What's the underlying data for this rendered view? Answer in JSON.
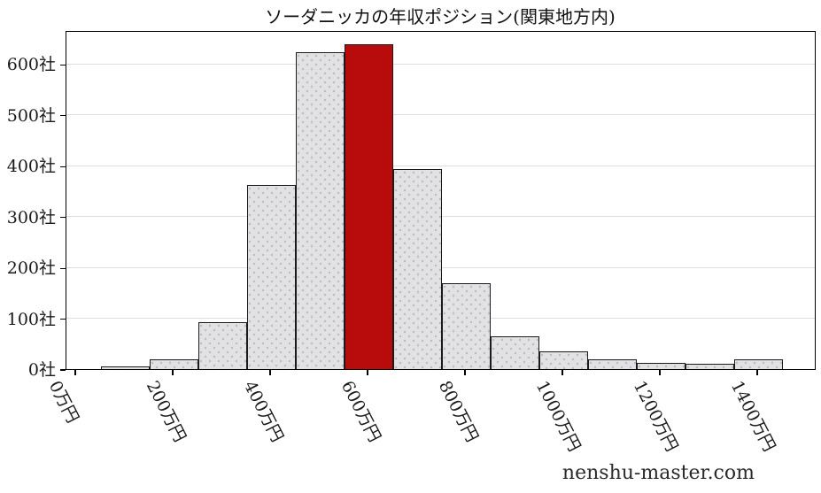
{
  "page": {
    "watermark": "nenshu-master.com"
  },
  "colors": {
    "background": "#ffffff",
    "bar_fill": "#e2e2e4",
    "bar_dot": "#c6c6ce",
    "bar_edge": "#1a1a1a",
    "highlight_fill": "#b80c0c",
    "gridline": "#dedede",
    "spine": "#000000",
    "text": "#1a1a1a"
  },
  "chart_data": {
    "type": "bar",
    "title": "ソーダニッカの年収ポジション(関東地方内)",
    "x_unit": "万円",
    "y_unit": "社",
    "bin_width": 100,
    "bin_centers": [
      0,
      100,
      200,
      300,
      400,
      500,
      600,
      700,
      800,
      900,
      1000,
      1100,
      1200,
      1300,
      1400
    ],
    "values": [
      0,
      4,
      18,
      90,
      360,
      622,
      637,
      392,
      168,
      63,
      33,
      18,
      11,
      8,
      18
    ],
    "highlight_index": 6,
    "highlight_bin_label": "600万円",
    "xtick_positions": [
      0,
      200,
      400,
      600,
      800,
      1000,
      1200,
      1400
    ],
    "xtick_labels": [
      "0万円",
      "200万円",
      "400万円",
      "600万円",
      "800万円",
      "1000万円",
      "1200万円",
      "1400万円"
    ],
    "yticks": [
      0,
      100,
      200,
      300,
      400,
      500,
      600
    ],
    "ytick_labels": [
      "0社",
      "100社",
      "200社",
      "300社",
      "400社",
      "500社",
      "600社"
    ],
    "ylim": [
      0,
      667
    ],
    "grid": "horizontal-only",
    "legend": "none"
  }
}
